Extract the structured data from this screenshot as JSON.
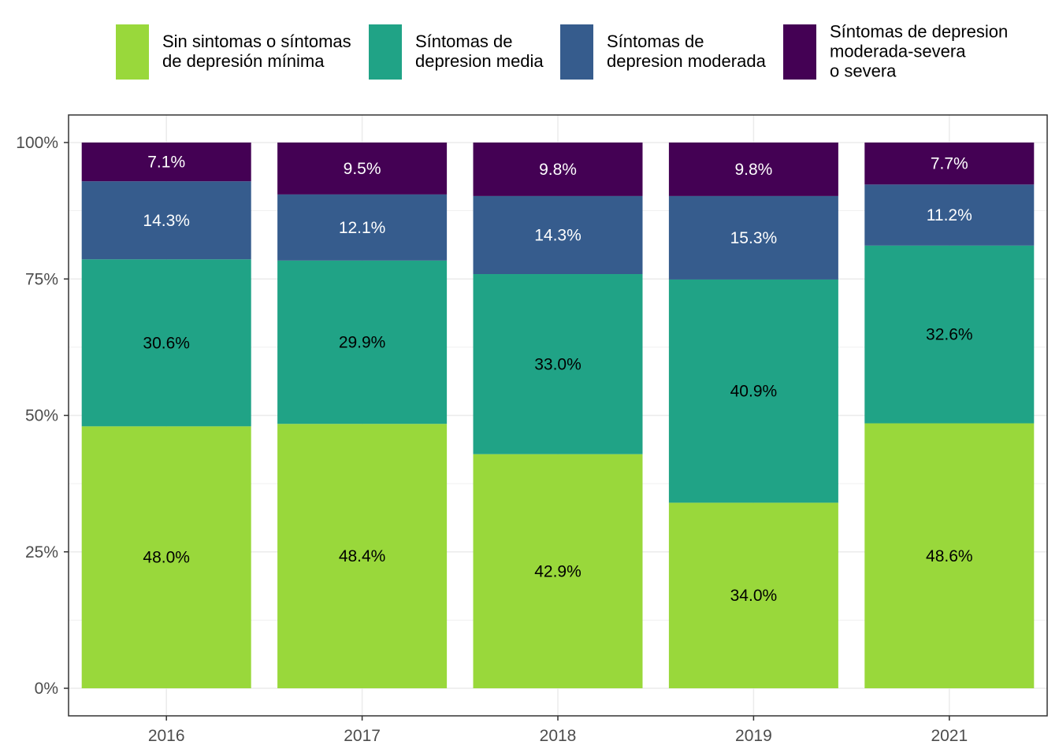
{
  "chart_data": {
    "type": "bar",
    "stacked": true,
    "percent": true,
    "title": "",
    "xlabel": "",
    "ylabel": "",
    "ylim": [
      0,
      100
    ],
    "y_ticks": [
      "0%",
      "25%",
      "50%",
      "75%",
      "100%"
    ],
    "y_tick_values": [
      0,
      25,
      50,
      75,
      100
    ],
    "categories": [
      "2016",
      "2017",
      "2018",
      "2019",
      "2021"
    ],
    "grid": true,
    "legend_position": "top",
    "series": [
      {
        "name": "Sin sintomas o síntomas de depresión mínima",
        "name_lines": [
          "Sin sintomas o síntomas",
          "de depresión mínima"
        ],
        "color": "#99d83b",
        "label_color": "#000000",
        "values": [
          48.0,
          48.4,
          42.9,
          34.0,
          48.6
        ],
        "labels": [
          "48.0%",
          "48.4%",
          "42.9%",
          "34.0%",
          "48.6%"
        ]
      },
      {
        "name": "Síntomas de depresion media",
        "name_lines": [
          "Síntomas de",
          "depresion media"
        ],
        "color": "#20a386",
        "label_color": "#000000",
        "values": [
          30.6,
          29.9,
          33.0,
          40.9,
          32.6
        ],
        "labels": [
          "30.6%",
          "29.9%",
          "33.0%",
          "40.9%",
          "32.6%"
        ]
      },
      {
        "name": "Síntomas de depresion moderada",
        "name_lines": [
          "Síntomas de",
          "depresion moderada"
        ],
        "color": "#365c8d",
        "label_color": "#ffffff",
        "values": [
          14.3,
          12.1,
          14.3,
          15.3,
          11.2
        ],
        "labels": [
          "14.3%",
          "12.1%",
          "14.3%",
          "15.3%",
          "11.2%"
        ]
      },
      {
        "name": "Síntomas de depresion moderada-severa o severa",
        "name_lines": [
          "Síntomas de depresion",
          "moderada-severa",
          "o severa"
        ],
        "color": "#440154",
        "label_color": "#ffffff",
        "values": [
          7.1,
          9.5,
          9.8,
          9.8,
          7.7
        ],
        "labels": [
          "7.1%",
          "9.5%",
          "9.8%",
          "9.8%",
          "7.7%"
        ]
      }
    ]
  }
}
